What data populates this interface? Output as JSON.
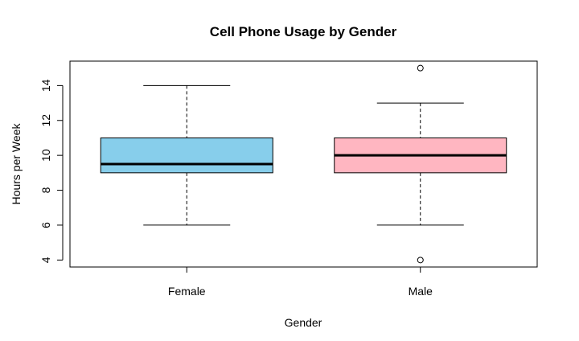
{
  "chart_data": {
    "type": "box",
    "title": "Cell Phone Usage by Gender",
    "xlabel": "Gender",
    "ylabel": "Hours per Week",
    "ylim": [
      3.6,
      15.4
    ],
    "yticks": [
      4,
      6,
      8,
      10,
      12,
      14
    ],
    "categories": [
      "Female",
      "Male"
    ],
    "boxes": [
      {
        "category": "Female",
        "color": "#87CEEB",
        "whisker_low": 6,
        "q1": 9,
        "median": 9.5,
        "q3": 11,
        "whisker_high": 14,
        "outliers": []
      },
      {
        "category": "Male",
        "color": "#FFB6C1",
        "whisker_low": 6,
        "q1": 9,
        "median": 10,
        "q3": 11,
        "whisker_high": 13,
        "outliers": [
          4,
          15
        ]
      }
    ],
    "grid": false,
    "legend": "none"
  }
}
